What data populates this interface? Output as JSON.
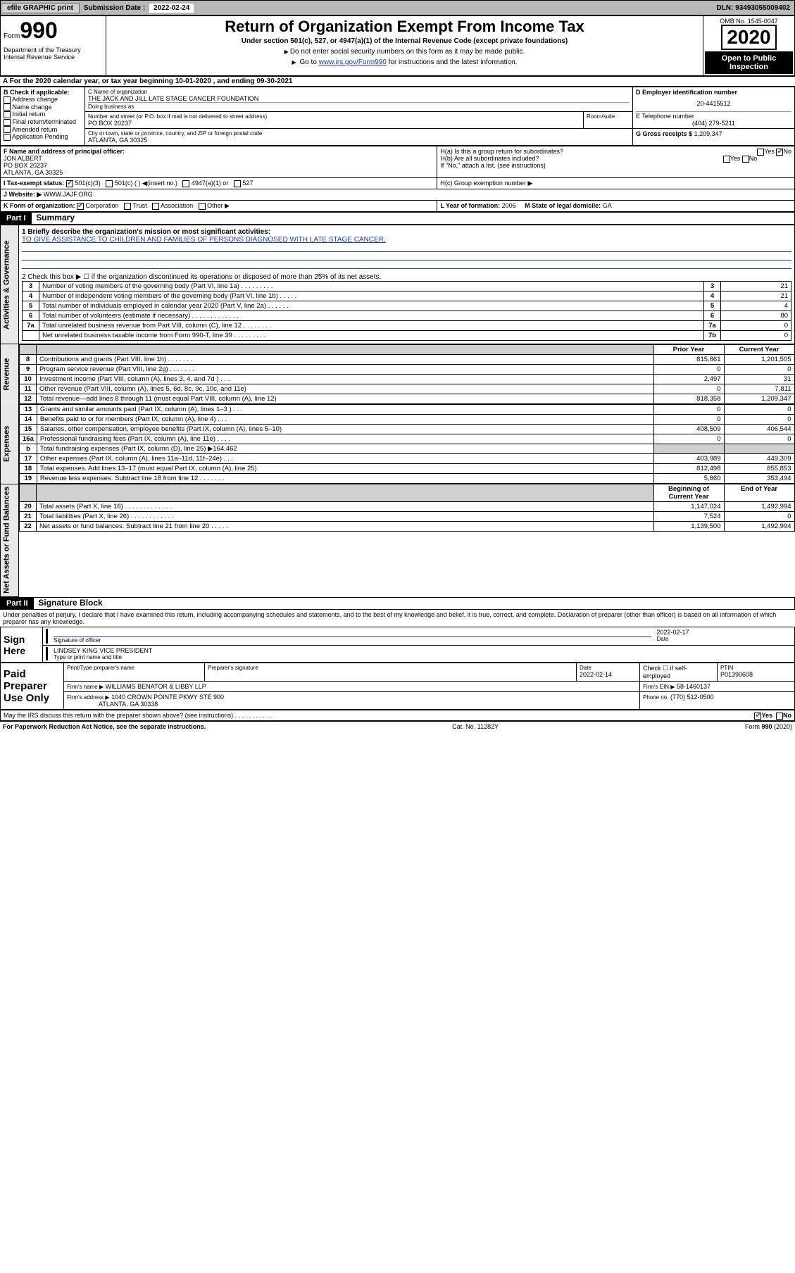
{
  "topbar": {
    "efile_btn": "efile GRAPHIC print",
    "sub_label": "Submission Date :",
    "sub_date": "2022-02-24",
    "dln": "DLN: 93493055009402"
  },
  "header": {
    "form_prefix": "Form",
    "form_num": "990",
    "title": "Return of Organization Exempt From Income Tax",
    "subtitle": "Under section 501(c), 527, or 4947(a)(1) of the Internal Revenue Code (except private foundations)",
    "note1": "Do not enter social security numbers on this form as it may be made public.",
    "note2_prefix": "Go to ",
    "note2_link": "www.irs.gov/Form990",
    "note2_suffix": " for instructions and the latest information.",
    "omb": "OMB No. 1545-0047",
    "year": "2020",
    "public": "Open to Public Inspection",
    "dept": "Department of the Treasury\nInternal Revenue Service"
  },
  "lineA": "A   For the 2020 calendar year, or tax year beginning 10-01-2020     , and ending 09-30-2021",
  "boxB": {
    "label": "B Check if applicable:",
    "items": [
      "Address change",
      "Name change",
      "Initial return",
      "Final return/terminated",
      "Amended return",
      "Application Pending"
    ]
  },
  "boxC": {
    "label": "C Name of organization",
    "name": "THE JACK AND JILL LATE STAGE CANCER FOUNDATION",
    "dba_label": "Doing business as",
    "addr_label": "Number and street (or P.O. box if mail is not delivered to street address)",
    "room_label": "Room/suite",
    "addr": "PO BOX 20237",
    "city_label": "City or town, state or province, country, and ZIP or foreign postal code",
    "city": "ATLANTA, GA  30325"
  },
  "boxD": {
    "label": "D Employer identification number",
    "value": "20-4415512"
  },
  "boxE": {
    "label": "E Telephone number",
    "value": "(404) 279-5211"
  },
  "boxG": {
    "label_prefix": "G Gross receipts $",
    "value": "1,209,347"
  },
  "boxF": {
    "label": "F  Name and address of principal officer:",
    "name": "JON ALBERT",
    "addr1": "PO BOX 20237",
    "addr2": "ATLANTA, GA  30325"
  },
  "boxH": {
    "a_label": "H(a)  Is this a group return for subordinates?",
    "a_yes": "Yes",
    "a_no": "No",
    "b_label": "H(b)  Are all subordinates included?",
    "b_note": "If \"No,\" attach a list. (see instructions)",
    "c_label": "H(c)  Group exemption number ▶"
  },
  "boxI": {
    "label": "I     Tax-exempt status:",
    "opts": [
      "501(c)(3)",
      "501(c) (  ) ◀(insert no.)",
      "4947(a)(1) or",
      "527"
    ]
  },
  "boxJ": {
    "label": "J    Website: ▶",
    "value": "WWW.JAJF.ORG"
  },
  "boxK": {
    "label": "K Form of organization:",
    "opts": [
      "Corporation",
      "Trust",
      "Association",
      "Other ▶"
    ]
  },
  "boxL": {
    "label": "L Year of formation:",
    "value": "2006"
  },
  "boxM": {
    "label": "M State of legal domicile:",
    "value": "GA"
  },
  "part1": {
    "hdr": "Part I",
    "title": "Summary",
    "q1_label": "1  Briefly describe the organization's mission or most significant activities:",
    "q1_text": "TO GIVE ASSISTANCE TO CHILDREN AND FAMILIES OF PERSONS DIAGNOSED WITH LATE STAGE CANCER.",
    "q2": "2    Check this box ▶ ☐  if the organization discontinued its operations or disposed of more than 25% of its net assets.",
    "tabs": {
      "activities": "Activities & Governance",
      "revenue": "Revenue",
      "expenses": "Expenses",
      "netassets": "Net Assets or Fund Balances"
    },
    "rows_ag": [
      {
        "n": "3",
        "d": "Number of voting members of the governing body (Part VI, line 1a)   .    .    .    .    .    .    .    .    .",
        "bn": "3",
        "v": "21"
      },
      {
        "n": "4",
        "d": "Number of independent voting members of the governing body (Part VI, line 1b)   .    .    .    .    .",
        "bn": "4",
        "v": "21"
      },
      {
        "n": "5",
        "d": "Total number of individuals employed in calendar year 2020 (Part V, line 2a)   .    .    .    .    .    .",
        "bn": "5",
        "v": "4"
      },
      {
        "n": "6",
        "d": "Total number of volunteers (estimate if necessary)   .    .    .    .    .    .    .    .    .    .    .    .    .",
        "bn": "6",
        "v": "80"
      },
      {
        "n": "7a",
        "d": "Total unrelated business revenue from Part VIII, column (C), line 12   .    .    .    .    .    .    .    .",
        "bn": "7a",
        "v": "0"
      },
      {
        "n": "",
        "d": "Net unrelated business taxable income from Form 990-T, line 39   .    .    .    .    .    .    .    .    .",
        "bn": "7b",
        "v": "0"
      }
    ],
    "col_prior": "Prior Year",
    "col_curr": "Current Year",
    "rows_rev": [
      {
        "n": "8",
        "d": "Contributions and grants (Part VIII, line 1h)   .    .    .    .    .    .    .",
        "p": "815,861",
        "c": "1,201,505"
      },
      {
        "n": "9",
        "d": "Program service revenue (Part VIII, line 2g)   .    .    .    .    .    .    .",
        "p": "0",
        "c": "0"
      },
      {
        "n": "10",
        "d": "Investment income (Part VIII, column (A), lines 3, 4, and 7d )   .    .    .",
        "p": "2,497",
        "c": "31"
      },
      {
        "n": "11",
        "d": "Other revenue (Part VIII, column (A), lines 5, 6d, 8c, 9c, 10c, and 11e)",
        "p": "0",
        "c": "7,811"
      },
      {
        "n": "12",
        "d": "Total revenue—add lines 8 through 11 (must equal Part VIII, column (A), line 12)",
        "p": "818,358",
        "c": "1,209,347"
      }
    ],
    "rows_exp": [
      {
        "n": "13",
        "d": "Grants and similar amounts paid (Part IX, column (A), lines 1–3 )   .    .    .",
        "p": "0",
        "c": "0"
      },
      {
        "n": "14",
        "d": "Benefits paid to or for members (Part IX, column (A), line 4)   .    .    .",
        "p": "0",
        "c": "0"
      },
      {
        "n": "15",
        "d": "Salaries, other compensation, employee benefits (Part IX, column (A), lines 5–10)",
        "p": "408,509",
        "c": "406,544"
      },
      {
        "n": "16a",
        "d": "Professional fundraising fees (Part IX, column (A), line 11e)   .    .    .    .",
        "p": "0",
        "c": "0"
      },
      {
        "n": "b",
        "d": "Total fundraising expenses (Part IX, column (D), line 25) ▶164,462",
        "p": "",
        "c": "",
        "shade": true
      },
      {
        "n": "17",
        "d": "Other expenses (Part IX, column (A), lines 11a–11d, 11f–24e)   .    .    .",
        "p": "403,989",
        "c": "449,309"
      },
      {
        "n": "18",
        "d": "Total expenses. Add lines 13–17 (must equal Part IX, column (A), line 25)",
        "p": "812,498",
        "c": "855,853"
      },
      {
        "n": "19",
        "d": "Revenue less expenses. Subtract line 18 from line 12   .    .    .    .    .    .    .",
        "p": "5,860",
        "c": "353,494"
      }
    ],
    "col_begin": "Beginning of Current Year",
    "col_end": "End of Year",
    "rows_na": [
      {
        "n": "20",
        "d": "Total assets (Part X, line 16)   .    .    .    .    .    .    .    .    .    .    .    .    .",
        "p": "1,147,024",
        "c": "1,492,994"
      },
      {
        "n": "21",
        "d": "Total liabilities (Part X, line 26)   .    .    .    .    .    .    .    .    .    .    .    .",
        "p": "7,524",
        "c": "0"
      },
      {
        "n": "22",
        "d": "Net assets or fund balances. Subtract line 21 from line 20   .    .    .    .    .",
        "p": "1,139,500",
        "c": "1,492,994"
      }
    ]
  },
  "part2": {
    "hdr": "Part II",
    "title": "Signature Block",
    "decl": "Under penalties of perjury, I declare that I have examined this return, including accompanying schedules and statements, and to the best of my knowledge and belief, it is true, correct, and complete. Declaration of preparer (other than officer) is based on all information of which preparer has any knowledge.",
    "sign_here": "Sign Here",
    "sig_officer": "Signature of officer",
    "sig_date": "2022-02-17",
    "sig_date_label": "Date",
    "officer_name": "LINDSEY KING  VICE PRESIDENT",
    "officer_name_label": "Type or print name and title",
    "paid": "Paid Preparer Use Only",
    "prep_name_label": "Print/Type preparer's name",
    "prep_sig_label": "Preparer's signature",
    "prep_date_label": "Date",
    "prep_date": "2022-02-14",
    "check_label": "Check ☐ if self-employed",
    "ptin_label": "PTIN",
    "ptin": "P01390608",
    "firm_name_label": "Firm's name    ▶",
    "firm_name": "WILLIAMS BENATOR & LIBBY LLP",
    "firm_ein_label": "Firm's EIN ▶",
    "firm_ein": "58-1460137",
    "firm_addr_label": "Firm's address ▶",
    "firm_addr1": "1040 CROWN POINTE PKWY STE 900",
    "firm_addr2": "ATLANTA, GA  30338",
    "phone_label": "Phone no.",
    "phone": "(770) 512-0500",
    "discuss": "May the IRS discuss this return with the preparer shown above? (see instructions)   .    .    .    .    .    .    .    .    .    .    .",
    "discuss_yes": "Yes",
    "discuss_no": "No"
  },
  "footer": {
    "left": "For Paperwork Reduction Act Notice, see the separate instructions.",
    "mid": "Cat. No. 11282Y",
    "right": "Form 990 (2020)"
  },
  "colors": {
    "link": "#1a3da0",
    "check": "#0a7a2a",
    "shade": "#d0d0d0"
  }
}
